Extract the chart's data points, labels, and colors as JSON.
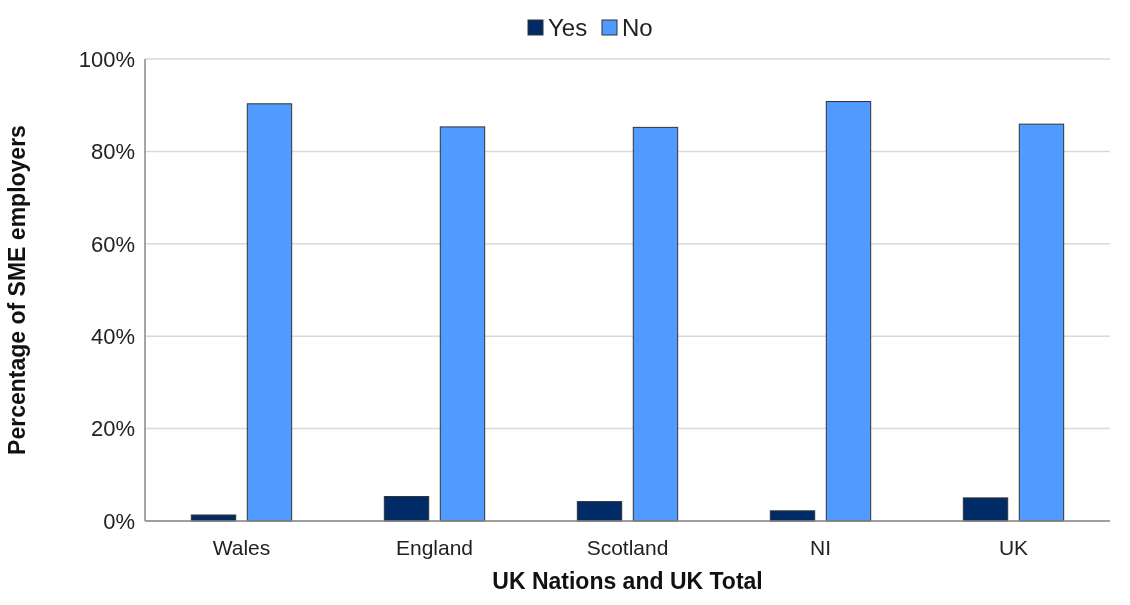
{
  "chart_data": {
    "type": "bar",
    "xlabel": "UK Nations and UK Total",
    "ylabel": "Percentage of SME employers",
    "categories": [
      "Wales",
      "England",
      "Scotland",
      "NI",
      "UK"
    ],
    "series": [
      {
        "name": "Yes",
        "color": "#002b66",
        "values": [
          1.3,
          5.3,
          4.2,
          2.2,
          5.0
        ]
      },
      {
        "name": "No",
        "color": "#4f9bff",
        "values": [
          90.3,
          85.3,
          85.2,
          90.8,
          85.9
        ]
      }
    ],
    "ylim": [
      0,
      100
    ],
    "yticks": [
      {
        "value": 0,
        "label": "0%"
      },
      {
        "value": 20,
        "label": "20%"
      },
      {
        "value": 40,
        "label": "40%"
      },
      {
        "value": 60,
        "label": "60%"
      },
      {
        "value": 80,
        "label": "80%"
      },
      {
        "value": 100,
        "label": "100%"
      }
    ],
    "grid": "y",
    "legend": "top"
  }
}
